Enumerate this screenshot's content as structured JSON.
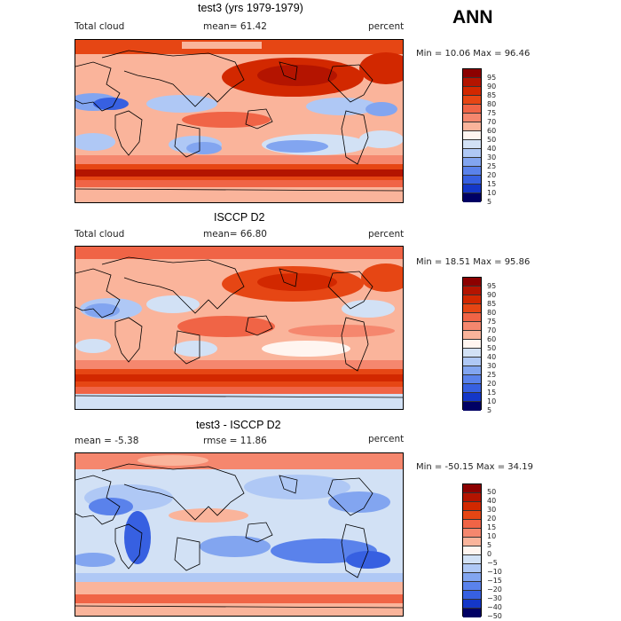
{
  "season": "ANN",
  "panels": [
    {
      "title": "test3 (yrs 1979-1979)",
      "left_label": "Total cloud",
      "center_label": "mean=  61.42",
      "right_label": "percent",
      "minmax": "Min =  10.06 Max =  96.46",
      "colorbar_labels": [
        "95",
        "90",
        "85",
        "80",
        "75",
        "70",
        "60",
        "50",
        "40",
        "30",
        "25",
        "20",
        "15",
        "10",
        "5"
      ]
    },
    {
      "title": "ISCCP D2",
      "left_label": "Total cloud",
      "center_label": "mean=  66.80",
      "right_label": "percent",
      "minmax": "Min =  18.51 Max =  95.86",
      "colorbar_labels": [
        "95",
        "90",
        "85",
        "80",
        "75",
        "70",
        "60",
        "50",
        "40",
        "30",
        "25",
        "20",
        "15",
        "10",
        "5"
      ]
    },
    {
      "title": "test3 - ISCCP D2",
      "left_label": "mean =  -5.38",
      "center_label": "rmse =  11.86",
      "right_label": "percent",
      "minmax": "Min = -50.15 Max =  34.19",
      "colorbar_labels": [
        "50",
        "40",
        "30",
        "20",
        "15",
        "10",
        "5",
        "0",
        "−5",
        "−10",
        "−15",
        "−20",
        "−30",
        "−40",
        "−50"
      ]
    }
  ],
  "colorbar_colors": [
    "#8c0000",
    "#b41400",
    "#d22800",
    "#e64614",
    "#f06446",
    "#f5876e",
    "#fab49b",
    "#fff5f0",
    "#d2e1f5",
    "#afc8f5",
    "#82a5f0",
    "#5a82eb",
    "#3760e1",
    "#1437c8",
    "#0a0f96",
    "#000064"
  ]
}
